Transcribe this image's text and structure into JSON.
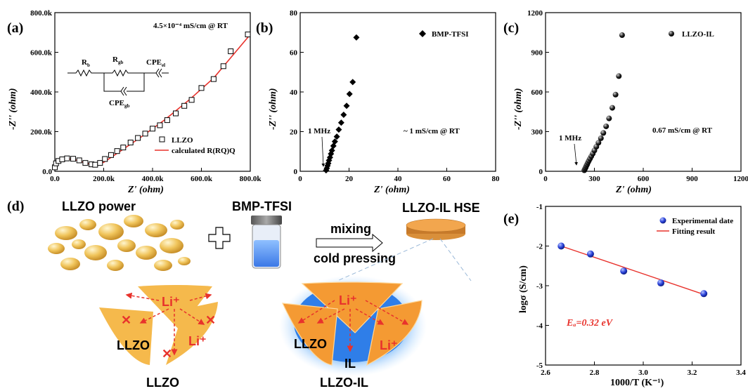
{
  "panel_labels": {
    "a": "(a)",
    "b": "(b)",
    "c": "(c)",
    "d": "(d)",
    "e": "(e)"
  },
  "colors": {
    "fit_red": "#e8322c",
    "particle": "#f0c45a",
    "orange": "#f49a33",
    "blue_glow": "#7ab8f0",
    "blue_ball": "#2740d8",
    "vial_liquid": "#4d8ef0"
  },
  "chart_data": [
    {
      "type": "scatter",
      "panel": "a",
      "xlabel": "Z' (ohm)",
      "ylabel": "-Z'' (ohm)",
      "xlim": [
        0,
        800000
      ],
      "ylim": [
        0,
        800000
      ],
      "xticks": [
        "0.0",
        "200.0k",
        "400.0k",
        "600.0k",
        "800.0k"
      ],
      "yticks": [
        "0.0",
        "200.0k",
        "400.0k",
        "600.0k",
        "800.0k"
      ],
      "annotation": "4.5×10⁻⁴ mS/cm @ RT",
      "circuit": {
        "rb": "R",
        "rb_sub": "b",
        "rgb": "R",
        "rgb_sub": "gb",
        "cpe_el": "CPE",
        "cpe_el_sub": "el",
        "cpe_gb": "CPE",
        "cpe_gb_sub": "gb"
      },
      "series": [
        {
          "name": "LLZO",
          "marker": "open-square",
          "x": [
            0,
            5000,
            15000,
            30000,
            50000,
            75000,
            100000,
            125000,
            150000,
            165000,
            185000,
            205000,
            230000,
            255000,
            280000,
            310000,
            340000,
            370000,
            400000,
            430000,
            460000,
            495000,
            530000,
            560000,
            600000,
            650000,
            690000,
            720000,
            790000
          ],
          "y": [
            20000,
            40000,
            52000,
            60000,
            65000,
            63000,
            55000,
            42000,
            35000,
            33000,
            42000,
            62000,
            82000,
            102000,
            120000,
            145000,
            168000,
            190000,
            215000,
            232000,
            258000,
            292000,
            330000,
            360000,
            420000,
            465000,
            530000,
            605000,
            690000
          ]
        },
        {
          "name": "calculated R(RQ)Q",
          "style": "line",
          "x": [
            0,
            10000,
            30000,
            60000,
            90000,
            120000,
            150000,
            170000,
            200000,
            260000,
            350000,
            450000,
            550000,
            650000,
            800000
          ],
          "y": [
            22000,
            42000,
            57000,
            62000,
            56000,
            44000,
            34000,
            33000,
            45000,
            95000,
            170000,
            260000,
            360000,
            470000,
            690000
          ]
        }
      ]
    },
    {
      "type": "scatter",
      "panel": "b",
      "xlabel": "Z' (ohm)",
      "ylabel": "-Z'' (ohm)",
      "xlim": [
        0,
        80
      ],
      "ylim": [
        0,
        80
      ],
      "xticks": [
        "0",
        "20",
        "40",
        "60",
        "80"
      ],
      "yticks": [
        "0",
        "20",
        "40",
        "60",
        "80"
      ],
      "annotation": "~ 1 mS/cm @ RT",
      "freq_label": "1 MHz",
      "series": [
        {
          "name": "BMP-TFSI",
          "marker": "filled-diamond",
          "x": [
            10.6,
            10.9,
            11.2,
            11.5,
            11.8,
            12.2,
            12.6,
            13.0,
            13.6,
            14.2,
            15.0,
            15.8,
            16.8,
            17.8,
            19.0,
            20.2,
            21.5,
            23.0
          ],
          "y": [
            0.5,
            1.5,
            2.8,
            4.0,
            5.5,
            7.0,
            8.8,
            10.5,
            12.8,
            15.0,
            17.5,
            21.0,
            24.5,
            28.5,
            33.0,
            39.0,
            45.0,
            67.5
          ]
        }
      ]
    },
    {
      "type": "scatter",
      "panel": "c",
      "xlabel": "Z' (ohm)",
      "ylabel": "-Z'' (ohm)",
      "xlim": [
        0,
        1200
      ],
      "ylim": [
        0,
        1200
      ],
      "xticks": [
        "0",
        "300",
        "600",
        "900",
        "1200"
      ],
      "yticks": [
        "0",
        "300",
        "600",
        "900",
        "1200"
      ],
      "annotation": "0.67 mS/cm @ RT",
      "freq_label": "1 MHz",
      "series": [
        {
          "name": "LLZO-IL",
          "marker": "filled-circle",
          "x": [
            238,
            242,
            246,
            250,
            255,
            260,
            266,
            273,
            281,
            290,
            300,
            312,
            325,
            340,
            355,
            372,
            390,
            410,
            430,
            450,
            470
          ],
          "y": [
            8,
            18,
            28,
            40,
            52,
            66,
            80,
            96,
            114,
            134,
            158,
            186,
            216,
            250,
            290,
            340,
            400,
            480,
            580,
            720,
            1030
          ]
        }
      ]
    },
    {
      "type": "scatter",
      "panel": "e",
      "xlabel": "1000/T (K⁻¹)",
      "ylabel": "logσ (S/cm)",
      "xlim": [
        2.6,
        3.6
      ],
      "ylim": [
        -5,
        -1
      ],
      "xticks": [
        "2.6",
        "2.8",
        "3.0",
        "3.2",
        "3.4"
      ],
      "yticks": [
        "-5",
        "-4",
        "-3",
        "-2",
        "-1"
      ],
      "annotation": "Eₐ=0.32 eV",
      "series": [
        {
          "name": "Experimental date",
          "marker": "blue-sphere",
          "x": [
            2.68,
            2.83,
            3.0,
            3.19,
            3.41
          ],
          "y": [
            -2.0,
            -2.2,
            -2.63,
            -2.93,
            -3.2
          ]
        },
        {
          "name": "Fitting result",
          "style": "line",
          "x": [
            2.68,
            3.41
          ],
          "y": [
            -2.0,
            -3.22
          ]
        }
      ]
    }
  ],
  "schematic": {
    "llzo_powder": "LLZO power",
    "ionic_liquid": "BMP-TFSI",
    "process_top": "mixing",
    "process_bottom": "cold pressing",
    "product": "LLZO-IL  HSE",
    "left_caption": "LLZO",
    "right_caption": "LLZO-IL",
    "li_ion": "Li⁺",
    "grain_label": "LLZO",
    "il_label": "IL"
  }
}
